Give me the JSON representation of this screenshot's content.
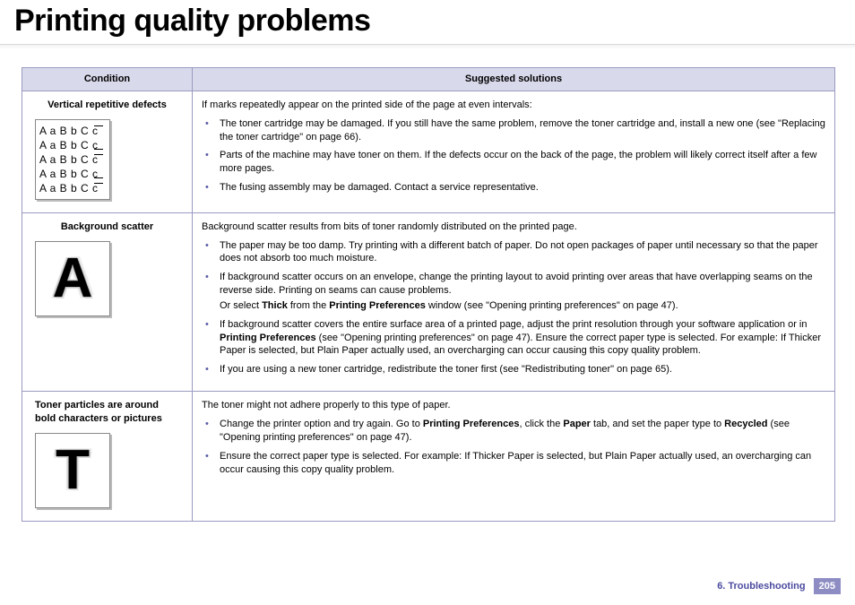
{
  "title": "Printing quality problems",
  "columns": {
    "condition": "Condition",
    "solutions": "Suggested solutions"
  },
  "rows": [
    {
      "condition": "Vertical repetitive defects",
      "sample": {
        "type": "lines",
        "text": "A a B b C c",
        "repeat": 5
      },
      "intro": "If marks repeatedly appear on the printed side of the page at even intervals:",
      "bullets": [
        {
          "text": "The toner cartridge may be damaged. If you still have the same problem, remove the toner cartridge and, install a new one (see \"Replacing the toner cartridge\" on page 66)."
        },
        {
          "text": "Parts of the machine may have toner on them. If the defects occur on the back of the page, the problem will likely correct itself after a few more pages."
        },
        {
          "text": "The fusing assembly may be damaged. Contact a service representative."
        }
      ]
    },
    {
      "condition": "Background scatter",
      "sample": {
        "type": "big-scatter",
        "letter": "A"
      },
      "intro": "Background scatter results from bits of toner randomly distributed on the printed page.",
      "bullets": [
        {
          "text": "The paper may be too damp. Try printing with a different batch of paper. Do not open packages of paper until necessary so that the paper does not absorb too much moisture."
        },
        {
          "html": "If background scatter occurs on an envelope, change the printing layout to avoid printing over areas that have overlapping seams on the reverse side. Printing on seams can cause problems.",
          "sub": "Or select <b>Thick</b> from the <b>Printing Preferences</b> window (see \"Opening printing preferences\" on page 47)."
        },
        {
          "html": "If background scatter covers the entire surface area of a printed page, adjust the print resolution through your software application or in <b>Printing Preferences</b> (see \"Opening printing preferences\" on page 47). Ensure the correct paper type is selected. For example: If Thicker Paper is selected, but Plain Paper actually used, an overcharging can occur causing this copy quality problem."
        },
        {
          "text": "If you are using a new toner cartridge, redistribute the toner first (see \"Redistributing toner\" on page 65)."
        }
      ]
    },
    {
      "condition": "Toner particles are around bold characters or pictures",
      "sample": {
        "type": "big-scatter",
        "letter": "T"
      },
      "intro": "The toner might not adhere properly to this type of paper.",
      "bullets": [
        {
          "html": "Change the printer option and try again. Go to <b>Printing Preferences</b>, click the <b>Paper</b> tab, and set the paper type to <b>Recycled</b> (see \"Opening printing preferences\" on page 47)."
        },
        {
          "text": "Ensure the correct paper type is selected. For example: If Thicker Paper is selected, but Plain Paper actually used, an overcharging can occur causing this copy quality problem."
        }
      ]
    }
  ],
  "footer": {
    "chapter": "6.  Troubleshooting",
    "page": "205"
  },
  "colors": {
    "header_bg": "#d9d9ec",
    "border": "#9a9ac2",
    "bullet": "#5a5aa8",
    "footer_accent": "#4a4aa0",
    "pagenum_bg": "#8d8dc4"
  }
}
